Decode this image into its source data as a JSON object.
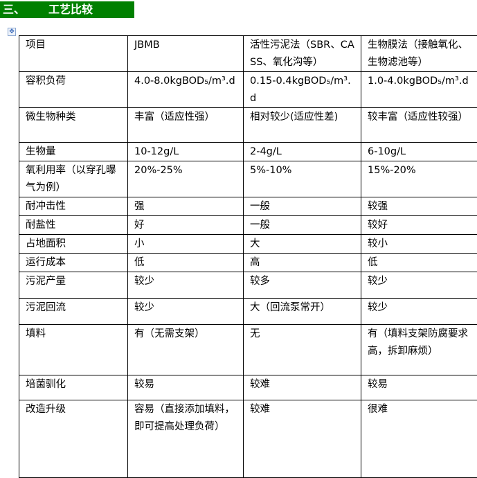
{
  "heading": {
    "number": "三、",
    "text": "工艺比较"
  },
  "table": {
    "rows": [
      [
        "项目",
        "JBMB",
        "活性污泥法（SBR、CASS、氧化沟等）",
        "生物膜法（接触氧化、生物滤池等）"
      ],
      [
        "容积负荷",
        "4.0-8.0kgBOD₅/m³.d",
        "0.15-0.4kgBOD₅/m³.d",
        "1.0-4.0kgBOD₅/m³.d"
      ],
      [
        "微生物种类",
        "丰富（适应性强）",
        "相对较少(适应性差)",
        "较丰富（适应性较强）"
      ],
      [
        "生物量",
        "10-12g/L",
        "2-4g/L",
        "6-10g/L"
      ],
      [
        "氧利用率（以穿孔曝气为例）",
        "20%-25%",
        "5%-10%",
        "15%-20%"
      ],
      [
        "耐冲击性",
        "强",
        "一般",
        "较强"
      ],
      [
        "耐盐性",
        "好",
        "一般",
        "较好"
      ],
      [
        "占地面积",
        "小",
        "大",
        "较小"
      ],
      [
        "运行成本",
        "低",
        "高",
        "低"
      ],
      [
        "污泥产量",
        "较少",
        "较多",
        "较少"
      ],
      [
        "污泥回流",
        "较少",
        "大（回流泵常开）",
        "较少"
      ],
      [
        "填料",
        "有（无需支架）",
        "无",
        "有（填料支架防腐要求高，拆卸麻烦）"
      ],
      [
        "培菌驯化",
        "较易",
        "较难",
        "较易"
      ],
      [
        "改造升级",
        "容易（直接添加填料，即可提高处理负荷）",
        "较难",
        "很难"
      ]
    ]
  }
}
